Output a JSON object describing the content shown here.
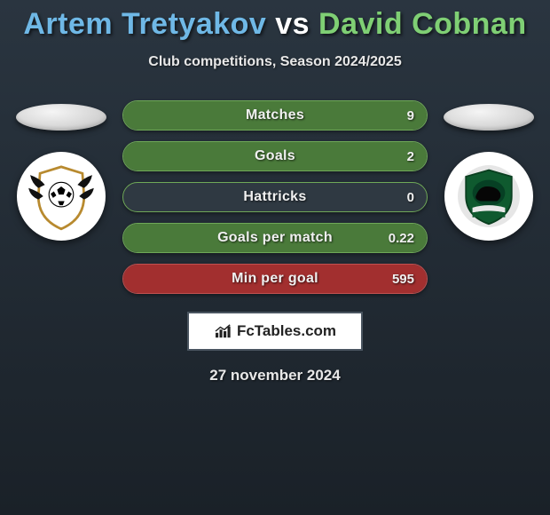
{
  "title_parts": [
    {
      "text": "Artem Tretyakov",
      "color": "#6fb8e6"
    },
    {
      "text": " vs ",
      "color": "#ffffff"
    },
    {
      "text": "David Cobnan",
      "color": "#7fcf74"
    }
  ],
  "subtitle": "Club competitions, Season 2024/2025",
  "stats": [
    {
      "label": "Matches",
      "value": "9",
      "fill_pct": 100,
      "fill_color": "#4a7a3a",
      "border_color": "#6fa858"
    },
    {
      "label": "Goals",
      "value": "2",
      "fill_pct": 100,
      "fill_color": "#4a7a3a",
      "border_color": "#6fa858"
    },
    {
      "label": "Hattricks",
      "value": "0",
      "fill_pct": 0,
      "fill_color": "#4a7a3a",
      "border_color": "#6fa858"
    },
    {
      "label": "Goals per match",
      "value": "0.22",
      "fill_pct": 100,
      "fill_color": "#4a7a3a",
      "border_color": "#6fa858"
    },
    {
      "label": "Min per goal",
      "value": "595",
      "fill_pct": 100,
      "fill_color": "#a22f2f",
      "border_color": "#c05050"
    }
  ],
  "brand": "FcTables.com",
  "date": "27 november 2024",
  "logo_left": {
    "bg": "#ffffff",
    "shield_border": "#b88a2f",
    "shield_fill": "#ffffff",
    "ball": "#000000",
    "wings": "#111111"
  },
  "logo_right": {
    "bg": "#ffffff",
    "shield_fill": "#0f5a2f",
    "shield_border": "#0a3f20",
    "bull": "#060606",
    "banner": "#e8e8e8"
  },
  "colors": {
    "oval_light": "#f0f0f0",
    "pill_bg": "#2f3942"
  }
}
